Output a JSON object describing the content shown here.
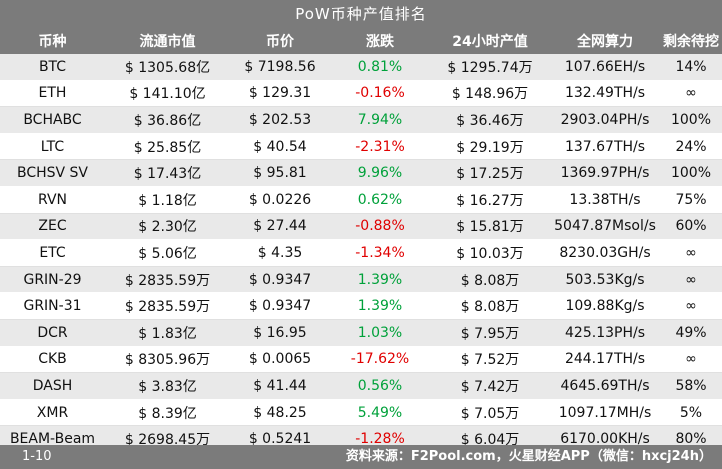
{
  "title": "PoW币种产值排名",
  "columns": [
    "币种",
    "流通市值",
    "币价",
    "涨跌",
    "24小时产值",
    "全网算力",
    "剩余待挖"
  ],
  "rows": [
    {
      "coin": "BTC",
      "cap": "$ 1305.68亿",
      "price": "$ 7198.56",
      "change": "0.81%",
      "dir": "up",
      "output": "$ 1295.74万",
      "hashrate": "107.66EH/s",
      "remaining": "14%"
    },
    {
      "coin": "ETH",
      "cap": "$ 141.10亿",
      "price": "$ 129.31",
      "change": "-0.16%",
      "dir": "down",
      "output": "$ 148.96万",
      "hashrate": "132.49TH/s",
      "remaining": "∞"
    },
    {
      "coin": "BCHABC",
      "cap": "$ 36.86亿",
      "price": "$ 202.53",
      "change": "7.94%",
      "dir": "up",
      "output": "$ 36.46万",
      "hashrate": "2903.04PH/s",
      "remaining": "100%"
    },
    {
      "coin": "LTC",
      "cap": "$ 25.85亿",
      "price": "$ 40.54",
      "change": "-2.31%",
      "dir": "down",
      "output": "$ 29.19万",
      "hashrate": "137.67TH/s",
      "remaining": "24%"
    },
    {
      "coin": "BCHSV SV",
      "cap": "$ 17.43亿",
      "price": "$ 95.81",
      "change": "9.96%",
      "dir": "up",
      "output": "$ 17.25万",
      "hashrate": "1369.97PH/s",
      "remaining": "100%"
    },
    {
      "coin": "RVN",
      "cap": "$ 1.18亿",
      "price": "$ 0.0226",
      "change": "0.62%",
      "dir": "up",
      "output": "$ 16.27万",
      "hashrate": "13.38TH/s",
      "remaining": "75%"
    },
    {
      "coin": "ZEC",
      "cap": "$ 2.30亿",
      "price": "$ 27.44",
      "change": "-0.88%",
      "dir": "down",
      "output": "$ 15.81万",
      "hashrate": "5047.87Msol/s",
      "remaining": "60%"
    },
    {
      "coin": "ETC",
      "cap": "$ 5.06亿",
      "price": "$ 4.35",
      "change": "-1.34%",
      "dir": "down",
      "output": "$ 10.03万",
      "hashrate": "8230.03GH/s",
      "remaining": "∞"
    },
    {
      "coin": "GRIN-29",
      "cap": "$ 2835.59万",
      "price": "$ 0.9347",
      "change": "1.39%",
      "dir": "up",
      "output": "$ 8.08万",
      "hashrate": "503.53Kg/s",
      "remaining": "∞"
    },
    {
      "coin": "GRIN-31",
      "cap": "$ 2835.59万",
      "price": "$ 0.9347",
      "change": "1.39%",
      "dir": "up",
      "output": "$ 8.08万",
      "hashrate": "109.88Kg/s",
      "remaining": "∞"
    },
    {
      "coin": "DCR",
      "cap": "$ 1.83亿",
      "price": "$ 16.95",
      "change": "1.03%",
      "dir": "up",
      "output": "$ 7.95万",
      "hashrate": "425.13PH/s",
      "remaining": "49%"
    },
    {
      "coin": "CKB",
      "cap": "$ 8305.96万",
      "price": "$ 0.0065",
      "change": "-17.62%",
      "dir": "down",
      "output": "$ 7.52万",
      "hashrate": "244.17TH/s",
      "remaining": "∞"
    },
    {
      "coin": "DASH",
      "cap": "$ 3.83亿",
      "price": "$ 41.44",
      "change": "0.56%",
      "dir": "up",
      "output": "$ 7.42万",
      "hashrate": "4645.69TH/s",
      "remaining": "58%"
    },
    {
      "coin": "XMR",
      "cap": "$ 8.39亿",
      "price": "$ 48.25",
      "change": "5.49%",
      "dir": "up",
      "output": "$ 7.05万",
      "hashrate": "1097.17MH/s",
      "remaining": "5%"
    },
    {
      "coin": "BEAM-Beam",
      "cap": "$ 2698.45万",
      "price": "$ 0.5241",
      "change": "-1.28%",
      "dir": "down",
      "output": "$ 6.04万",
      "hashrate": "6170.00KH/s",
      "remaining": "80%"
    }
  ],
  "footer": {
    "page": "1-10",
    "source": "资料来源：F2Pool.com，火星财经APP（微信：hxcj24h）"
  },
  "colors": {
    "header_bg": "#7b7b7b",
    "up": "#00a13a",
    "down": "#e00000",
    "stripe": "#e9e9e9"
  }
}
